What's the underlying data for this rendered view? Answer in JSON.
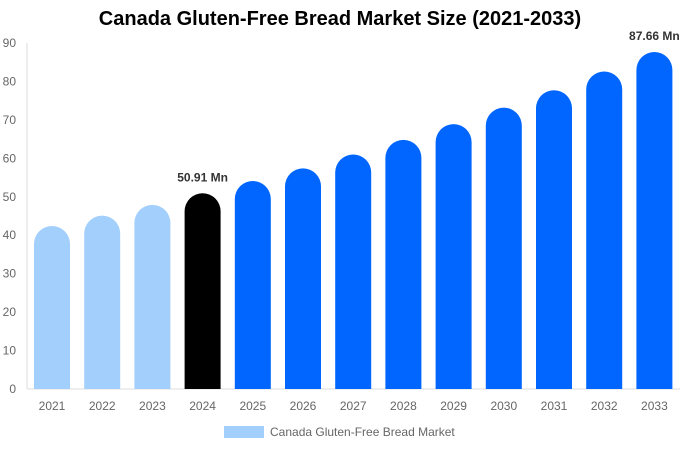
{
  "chart_data": {
    "type": "bar",
    "title": "Canada Gluten-Free Bread Market Size (2021-2033)",
    "categories": [
      "2021",
      "2022",
      "2023",
      "2024",
      "2025",
      "2026",
      "2027",
      "2028",
      "2029",
      "2030",
      "2031",
      "2032",
      "2033"
    ],
    "series": [
      {
        "name": "Canada Gluten-Free Bread Market",
        "values": [
          42.4,
          45.1,
          47.9,
          50.91,
          54.1,
          57.4,
          61.0,
          64.8,
          68.9,
          73.2,
          77.7,
          82.6,
          87.66
        ]
      }
    ],
    "data_labels": {
      "2024": "50.91 Mn",
      "2033": "87.66 Mn"
    },
    "ylim": [
      0,
      90
    ],
    "yticks": [
      0,
      10,
      20,
      30,
      40,
      50,
      60,
      70,
      80,
      90
    ],
    "grid": false,
    "legend": "bottom",
    "colors": {
      "historical": "#a3cffd",
      "current": "#000000",
      "forecast": "#0066ff"
    }
  }
}
